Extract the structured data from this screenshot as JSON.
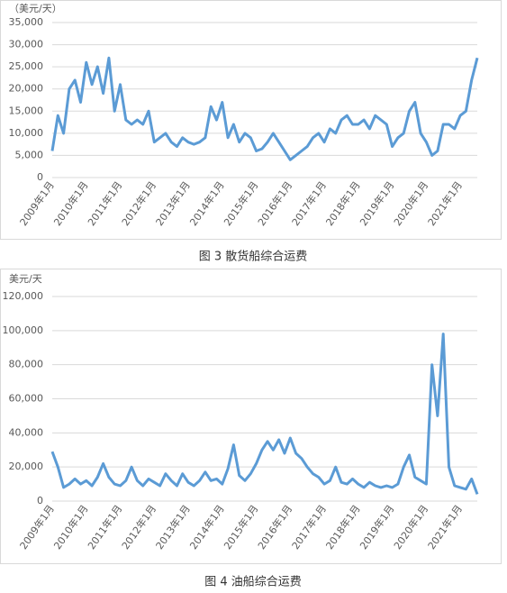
{
  "chart_data": [
    {
      "type": "line",
      "title": "图 3 散货船综合运费",
      "y_label": "（美元/天）",
      "color": "#5b9bd5",
      "categories": [
        "2009年1月",
        null,
        null,
        null,
        null,
        null,
        "2010年1月",
        null,
        null,
        null,
        null,
        null,
        "2011年1月",
        null,
        null,
        null,
        null,
        null,
        "2012年1月",
        null,
        null,
        null,
        null,
        null,
        "2013年1月",
        null,
        null,
        null,
        null,
        null,
        "2014年1月",
        null,
        null,
        null,
        null,
        null,
        "2015年1月",
        null,
        null,
        null,
        null,
        null,
        "2016年1月",
        null,
        null,
        null,
        null,
        null,
        "2017年1月",
        null,
        null,
        null,
        null,
        null,
        "2018年1月",
        null,
        null,
        null,
        null,
        null,
        "2019年1月",
        null,
        null,
        null,
        null,
        null,
        "2020年1月",
        null,
        null,
        null,
        null,
        null,
        "2021年1月",
        null,
        null,
        null
      ],
      "values": [
        6000,
        14000,
        10000,
        20000,
        22000,
        17000,
        26000,
        21000,
        25000,
        19000,
        27000,
        15000,
        21000,
        13000,
        12000,
        13000,
        12000,
        15000,
        8000,
        9000,
        10000,
        8000,
        7000,
        9000,
        8000,
        7500,
        8000,
        9000,
        16000,
        13000,
        17000,
        9000,
        12000,
        8000,
        10000,
        9000,
        6000,
        6500,
        8000,
        10000,
        8000,
        6000,
        4000,
        5000,
        6000,
        7000,
        9000,
        10000,
        8000,
        11000,
        10000,
        13000,
        14000,
        12000,
        12000,
        13000,
        11000,
        14000,
        13000,
        12000,
        7000,
        9000,
        10000,
        15000,
        17000,
        10000,
        8000,
        5000,
        6000,
        12000,
        12000,
        11000,
        14000,
        15000,
        22000,
        27000
      ],
      "ylim": [
        0,
        35000
      ],
      "yticks": [
        0,
        {
          "value": 5000,
          "label": "5,000"
        },
        {
          "value": 10000,
          "label": "10,000"
        },
        {
          "value": 15000,
          "label": "15,000"
        },
        {
          "value": 20000,
          "label": "20,000"
        },
        {
          "value": 25000,
          "label": "25,000"
        },
        {
          "value": 30000,
          "label": "30,000"
        },
        {
          "value": 35000,
          "label": "35,000"
        }
      ],
      "grid": true
    },
    {
      "type": "line",
      "title": "图 4 油船综合运费",
      "y_label": "美元/天",
      "color": "#5b9bd5",
      "categories": [
        "2009年1月",
        null,
        null,
        null,
        null,
        null,
        "2010年1月",
        null,
        null,
        null,
        null,
        null,
        "2011年1月",
        null,
        null,
        null,
        null,
        null,
        "2012年1月",
        null,
        null,
        null,
        null,
        null,
        "2013年1月",
        null,
        null,
        null,
        null,
        null,
        "2014年1月",
        null,
        null,
        null,
        null,
        null,
        "2015年1月",
        null,
        null,
        null,
        null,
        null,
        "2016年1月",
        null,
        null,
        null,
        null,
        null,
        "2017年1月",
        null,
        null,
        null,
        null,
        null,
        "2018年1月",
        null,
        null,
        null,
        null,
        null,
        "2019年1月",
        null,
        null,
        null,
        null,
        null,
        "2020年1月",
        null,
        null,
        null,
        null,
        null,
        "2021年1月",
        null,
        null,
        null
      ],
      "values": [
        29000,
        20000,
        8000,
        10000,
        13000,
        10000,
        12000,
        9000,
        14000,
        22000,
        14000,
        10000,
        9000,
        12000,
        20000,
        12000,
        9000,
        13000,
        11000,
        9000,
        16000,
        12000,
        9000,
        16000,
        11000,
        9000,
        12000,
        17000,
        12000,
        13000,
        10000,
        19000,
        33000,
        15000,
        12000,
        16000,
        22000,
        30000,
        35000,
        30000,
        36000,
        28000,
        37000,
        28000,
        25000,
        20000,
        16000,
        14000,
        10000,
        12000,
        20000,
        11000,
        10000,
        13000,
        10000,
        8000,
        11000,
        9000,
        8000,
        9000,
        8000,
        10000,
        20000,
        27000,
        14000,
        12000,
        10000,
        80000,
        50000,
        98000,
        20000,
        9000,
        8000,
        7000,
        13000,
        4000
      ],
      "ylim": [
        0,
        120000
      ],
      "yticks": [
        0,
        {
          "value": 20000,
          "label": "20,000"
        },
        {
          "value": 40000,
          "label": "40,000"
        },
        {
          "value": 60000,
          "label": "60,000"
        },
        {
          "value": 80000,
          "label": "80,000"
        },
        {
          "value": 100000,
          "label": "100,000"
        },
        {
          "value": 120000,
          "label": "120,000"
        }
      ],
      "grid": true
    }
  ]
}
